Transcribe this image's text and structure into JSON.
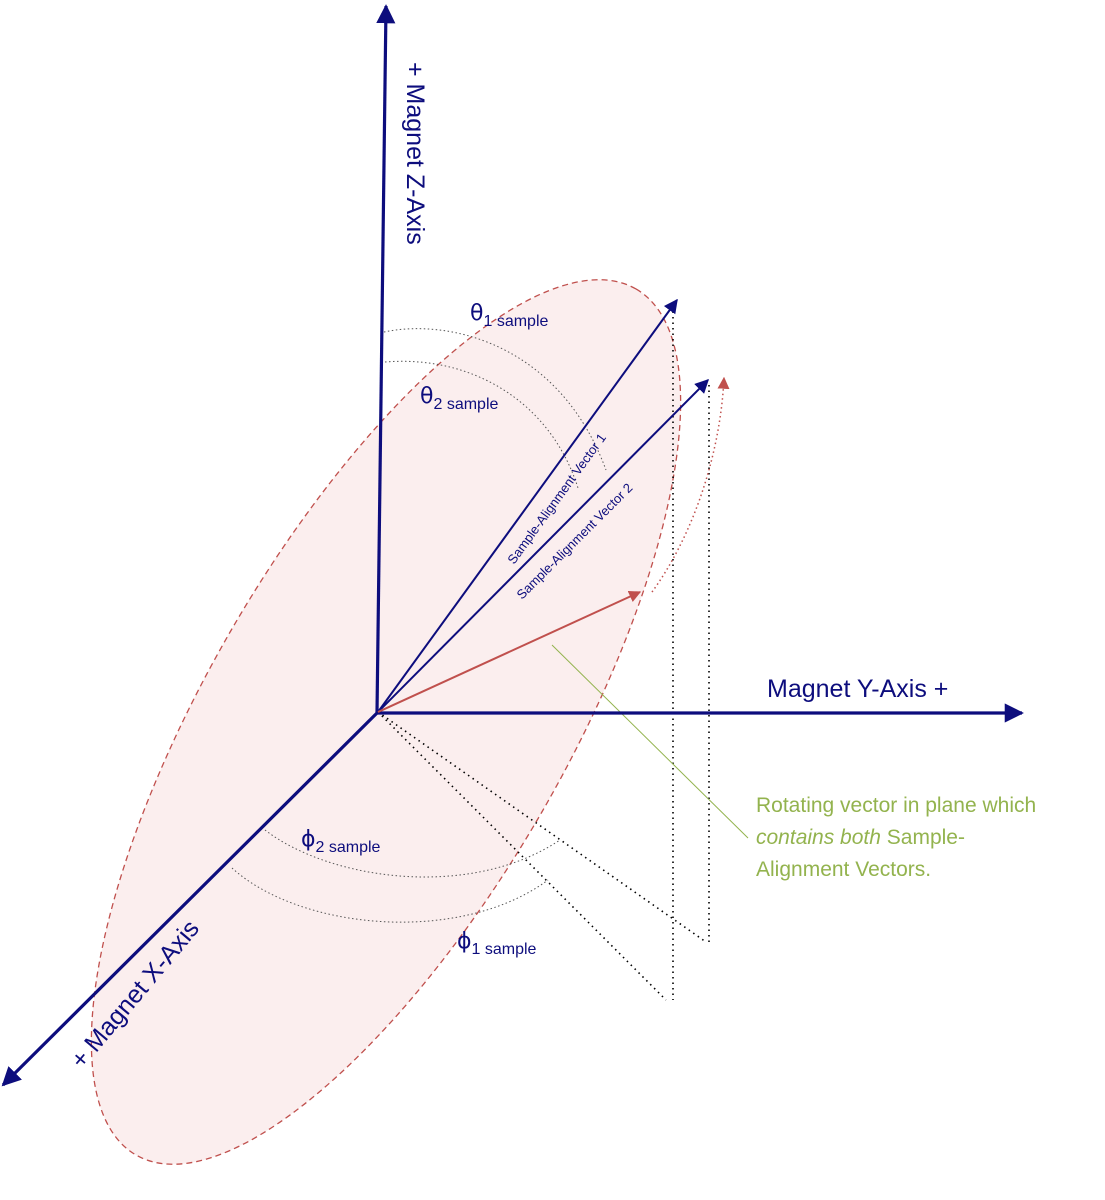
{
  "colors": {
    "axis": "#0d0d7d",
    "rotating_vector": "#c0504d",
    "plane_fill": "#fbeeee",
    "note": "#93b34e",
    "guide": "#000000"
  },
  "axes": {
    "z_label": "+ Magnet Z-Axis",
    "y_label": "Magnet Y-Axis +",
    "x_label": "+ Magnet X-Axis"
  },
  "angles": {
    "theta1": {
      "symbol": "θ",
      "sub": "1 sample"
    },
    "theta2": {
      "symbol": "θ",
      "sub": "2 sample"
    },
    "phi1": {
      "symbol": "ϕ",
      "sub": "1 sample"
    },
    "phi2": {
      "symbol": "ϕ",
      "sub": "2 sample"
    }
  },
  "vectors": {
    "v1_label": "Sample-Alignment Vector 1",
    "v2_label": "Sample-Alignment Vector 2"
  },
  "note": {
    "line1": "Rotating vector in plane which",
    "line2_italic": "contains both",
    "line2_rest": " Sample-",
    "line3": "Alignment Vectors."
  }
}
